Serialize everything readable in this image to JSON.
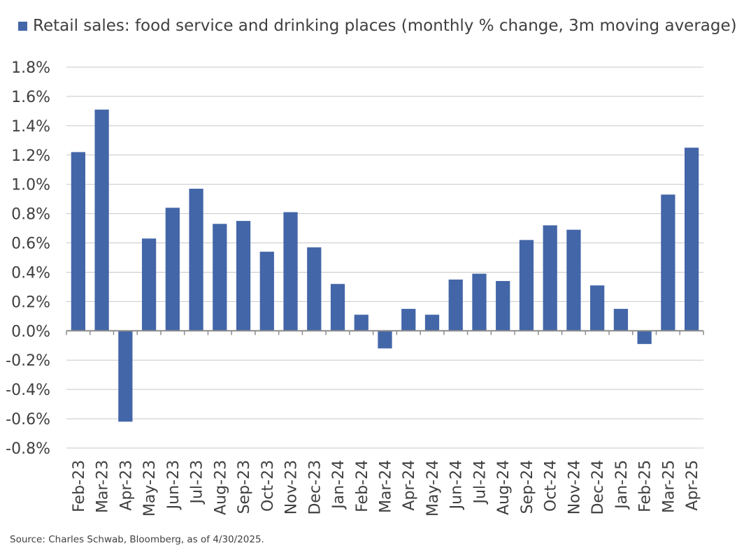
{
  "chart_data": {
    "type": "bar",
    "legend": {
      "label": "Retail sales: food service and drinking places (monthly % change, 3m moving average)",
      "position": "top-left"
    },
    "categories": [
      "Feb-23",
      "Mar-23",
      "Apr-23",
      "May-23",
      "Jun-23",
      "Jul-23",
      "Aug-23",
      "Sep-23",
      "Oct-23",
      "Nov-23",
      "Dec-23",
      "Jan-24",
      "Feb-24",
      "Mar-24",
      "Apr-24",
      "May-24",
      "Jun-24",
      "Jul-24",
      "Aug-24",
      "Sep-24",
      "Oct-24",
      "Nov-24",
      "Dec-24",
      "Jan-25",
      "Feb-25",
      "Mar-25",
      "Apr-25"
    ],
    "series": [
      {
        "name": "Retail sales: food service and drinking places (monthly % change, 3m moving average)",
        "values": [
          1.22,
          1.51,
          -0.62,
          0.63,
          0.84,
          0.97,
          0.73,
          0.75,
          0.54,
          0.81,
          0.57,
          0.32,
          0.11,
          -0.12,
          0.15,
          0.11,
          0.35,
          0.39,
          0.34,
          0.62,
          0.72,
          0.69,
          0.31,
          0.15,
          -0.09,
          0.93,
          1.25
        ]
      }
    ],
    "yticks": [
      "1.8%",
      "1.6%",
      "1.4%",
      "1.2%",
      "1.0%",
      "0.8%",
      "0.6%",
      "0.4%",
      "0.2%",
      "0.0%",
      "-0.2%",
      "-0.4%",
      "-0.6%",
      "-0.8%"
    ],
    "ylim": [
      -0.8,
      1.8
    ],
    "ytick_step": 0.2,
    "grid": true,
    "colors": {
      "bar": "#4366a8",
      "grid": "#c8c8c8",
      "axis": "#8c8c8c",
      "text": "#404040"
    }
  },
  "source": "Source: Charles Schwab, Bloomberg, as of 4/30/2025."
}
